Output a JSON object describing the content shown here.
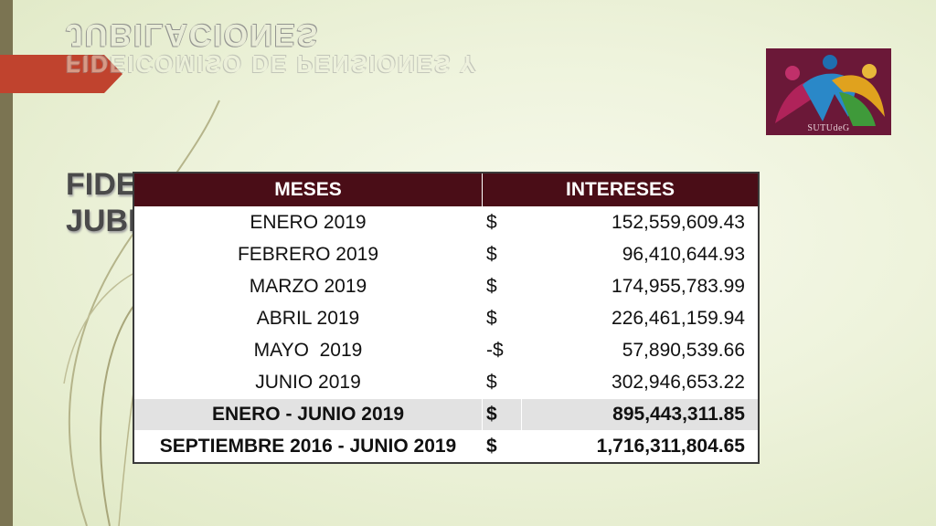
{
  "slide": {
    "title_top": "JUBILACIONES",
    "title_top_ghost": "FIDEICOMISO DE PENSIONES Y",
    "title_line1": "FIDE",
    "title_line2": "JUBI"
  },
  "logo": {
    "text": "SUTUdeG"
  },
  "table": {
    "headers": [
      "MESES",
      "INTERESES"
    ],
    "rows": [
      {
        "mes": "ENERO 2019",
        "cur": "$",
        "amt": "152,559,609.43"
      },
      {
        "mes": "FEBRERO 2019",
        "cur": "$",
        "amt": "96,410,644.93"
      },
      {
        "mes": "MARZO 2019",
        "cur": "$",
        "amt": "174,955,783.99"
      },
      {
        "mes": "ABRIL 2019",
        "cur": "$",
        "amt": "226,461,159.94"
      },
      {
        "mes": "MAYO  2019",
        "cur": "-$",
        "amt": "57,890,539.66"
      },
      {
        "mes": "JUNIO 2019",
        "cur": "$",
        "amt": "302,946,653.22"
      }
    ],
    "subtotal": {
      "mes": "ENERO - JUNIO 2019",
      "cur": "$",
      "amt": "895,443,311.85"
    },
    "total": {
      "mes": "SEPTIEMBRE 2016 - JUNIO 2019",
      "cur": "$",
      "amt": "1,716,311,804.65"
    }
  },
  "colors": {
    "header_bg": "#4a0d17",
    "accent_red": "#c0392b",
    "left_bar": "#7b7452"
  }
}
